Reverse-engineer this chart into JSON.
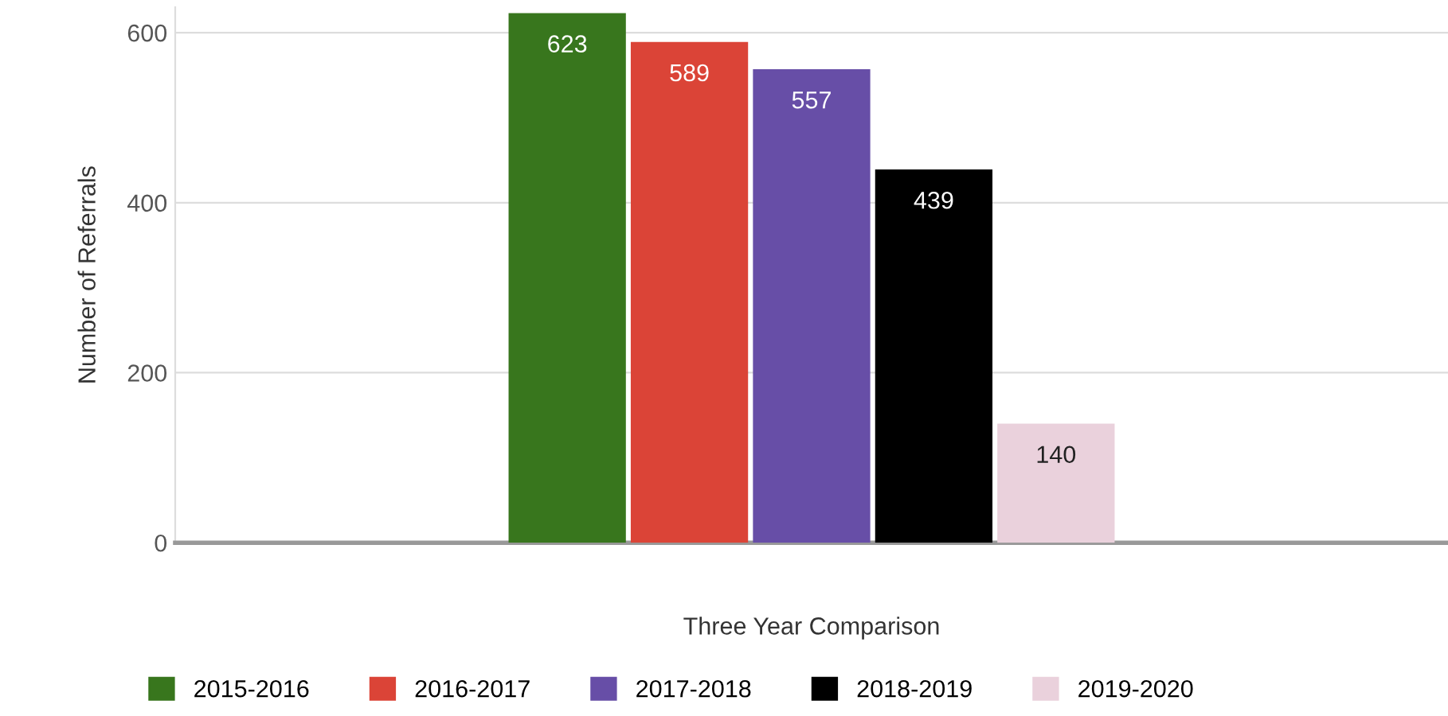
{
  "chart_data": {
    "type": "bar",
    "xlabel": "Three Year Comparison",
    "ylabel": "Number of Referrals",
    "categories": [
      null
    ],
    "series": [
      {
        "name": "2015-2016",
        "color": "#38761d",
        "values": [
          623
        ]
      },
      {
        "name": "2016-2017",
        "color": "#db4437",
        "values": [
          589
        ]
      },
      {
        "name": "2017-2018",
        "color": "#674ea7",
        "values": [
          557
        ]
      },
      {
        "name": "2018-2019",
        "color": "#000000",
        "values": [
          439
        ]
      },
      {
        "name": "2019-2020",
        "color": "#ead1dc",
        "values": [
          140
        ]
      }
    ],
    "ylim": [
      0,
      630
    ],
    "yticks": [
      0,
      200,
      400,
      600
    ],
    "grid": "y",
    "legend": "bottom",
    "data_labels": true
  }
}
